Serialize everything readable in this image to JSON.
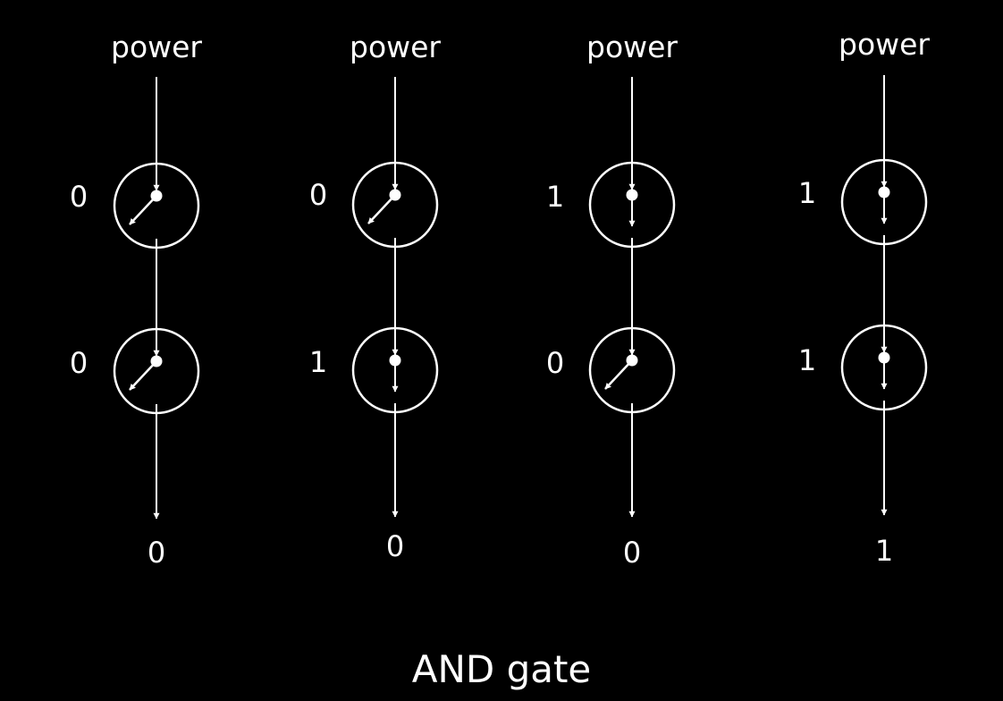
{
  "title": "AND gate",
  "colors": {
    "background": "#000000",
    "foreground": "#ffffff"
  },
  "columns": [
    {
      "power_label": "power",
      "input_a": "0",
      "input_b": "0",
      "output": "0",
      "switch_a": "open",
      "switch_b": "open"
    },
    {
      "power_label": "power",
      "input_a": "0",
      "input_b": "1",
      "output": "0",
      "switch_a": "open",
      "switch_b": "closed"
    },
    {
      "power_label": "power",
      "input_a": "1",
      "input_b": "0",
      "output": "0",
      "switch_a": "closed",
      "switch_b": "open"
    },
    {
      "power_label": "power",
      "input_a": "1",
      "input_b": "1",
      "output": "1",
      "switch_a": "closed",
      "switch_b": "closed"
    }
  ]
}
